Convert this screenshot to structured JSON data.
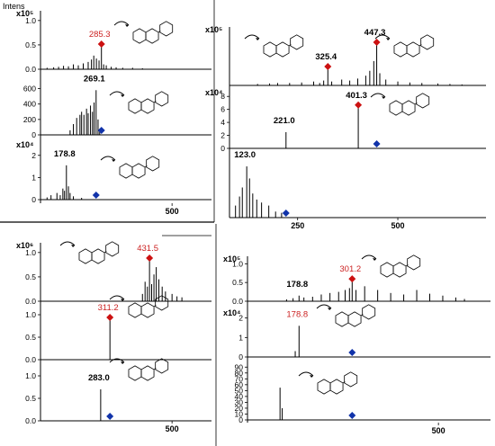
{
  "figure_label": "Intens",
  "colors": {
    "axis": "#000000",
    "peak": "#000000",
    "label_red": "#cc2222",
    "diamond_red": "#cc1111",
    "diamond_blue": "#1133aa"
  },
  "chart_data": [
    {
      "type": "bar",
      "panel": "top-left",
      "plots": [
        {
          "multiplier": "x10⁵",
          "y_ticks": [
            "0.0",
            "0.5",
            "1.0"
          ],
          "ylim": [
            0,
            1.2
          ],
          "peak_label": "285.3",
          "peak_color": "red",
          "peak_x": 285.3,
          "peak_y": 0.48,
          "precursor": {
            "x": 285.3,
            "color": "red"
          },
          "x": [
            120,
            140,
            155,
            170,
            185,
            200,
            215,
            230,
            245,
            255,
            262,
            270,
            278,
            285.3,
            292,
            300,
            315,
            330,
            350,
            380,
            410
          ],
          "y": [
            0.03,
            0.04,
            0.05,
            0.07,
            0.06,
            0.1,
            0.08,
            0.12,
            0.15,
            0.2,
            0.28,
            0.22,
            0.18,
            0.48,
            0.1,
            0.08,
            0.05,
            0.04,
            0.03,
            0.03,
            0.02
          ]
        },
        {
          "multiplier": "",
          "y_ticks": [
            "0",
            "200",
            "400",
            "600"
          ],
          "ylim": [
            0,
            700
          ],
          "peak_label": "269.1",
          "peak_color": "black",
          "peak_x": 269.1,
          "peak_y": 580,
          "precursor": {
            "x": 285.3,
            "color": "blue"
          },
          "x": [
            190,
            200,
            210,
            220,
            225,
            232,
            240,
            245,
            252,
            258,
            263,
            269.1,
            275,
            280
          ],
          "y": [
            60,
            140,
            220,
            260,
            300,
            260,
            340,
            280,
            380,
            300,
            420,
            580,
            200,
            80
          ]
        },
        {
          "multiplier": "x10⁴",
          "y_ticks": [
            "0",
            "1",
            "2"
          ],
          "ylim": [
            0,
            2.6
          ],
          "peak_label": "178.8",
          "peak_color": "black",
          "peak_x": 178.8,
          "peak_y": 1.55,
          "precursor": {
            "x": 269.1,
            "color": "blue"
          },
          "x": [
            120,
            132,
            150,
            160,
            168,
            173,
            178.8,
            185,
            190,
            200,
            225
          ],
          "y": [
            0.1,
            0.2,
            0.3,
            0.2,
            0.5,
            0.4,
            1.55,
            0.6,
            0.3,
            0.15,
            0.08
          ]
        }
      ],
      "x_ticks": [
        "500"
      ]
    },
    {
      "type": "bar",
      "panel": "top-right",
      "plots": [
        {
          "multiplier": "x10⁵",
          "y_ticks": [],
          "ylim": [
            0,
            1.2
          ],
          "peak_labels": [
            {
              "text": "325.4",
              "x": 325.4,
              "y": 0.35
            },
            {
              "text": "447.3",
              "x": 447.3,
              "y": 0.85
            }
          ],
          "precursors": [
            {
              "x": 325.4,
              "color": "red"
            },
            {
              "x": 447.3,
              "color": "red"
            }
          ],
          "x": [
            150,
            180,
            200,
            230,
            260,
            290,
            305,
            315,
            325.4,
            335,
            360,
            380,
            400,
            420,
            430,
            440,
            447.3,
            455,
            470,
            500,
            530,
            560,
            600,
            630,
            660
          ],
          "y": [
            0.03,
            0.04,
            0.05,
            0.05,
            0.06,
            0.08,
            0.05,
            0.1,
            0.35,
            0.08,
            0.12,
            0.1,
            0.14,
            0.2,
            0.3,
            0.5,
            0.85,
            0.25,
            0.12,
            0.08,
            0.06,
            0.05,
            0.04,
            0.03,
            0.02
          ]
        },
        {
          "multiplier": "x10⁴",
          "y_ticks": [
            "0",
            "2",
            "4",
            "6",
            "8"
          ],
          "ylim": [
            0,
            9
          ],
          "peak_labels": [
            {
              "text": "221.0",
              "x": 221.0,
              "y": 2.5
            },
            {
              "text": "401.3",
              "x": 401.3,
              "y": 6.4
            }
          ],
          "precursors": [
            {
              "x": 401.3,
              "color": "red"
            },
            {
              "x": 447.3,
              "color": "blue"
            }
          ],
          "x": [
            221.0,
            401.3
          ],
          "y": [
            2.5,
            6.4
          ]
        },
        {
          "multiplier": "",
          "y_ticks": [],
          "ylim": [
            0,
            1
          ],
          "peak_labels": [
            {
              "text": "123.0",
              "x": 123.0,
              "y": 0.85
            }
          ],
          "precursors": [
            {
              "x": 221.0,
              "color": "blue"
            }
          ],
          "x": [
            95,
            105,
            112,
            123.0,
            130,
            138,
            148,
            160,
            178,
            195,
            210
          ],
          "y": [
            0.2,
            0.35,
            0.5,
            0.85,
            0.65,
            0.4,
            0.3,
            0.25,
            0.2,
            0.1,
            0.08
          ]
        }
      ],
      "x_ticks": [
        "250",
        "500"
      ]
    },
    {
      "type": "bar",
      "panel": "bottom-left",
      "plots": [
        {
          "multiplier": "x10⁶",
          "y_ticks": [
            "0.0",
            "0.5",
            "1.0"
          ],
          "ylim": [
            0,
            1.2
          ],
          "peak_label": "431.5",
          "peak_color": "red",
          "peak_x": 431.5,
          "peak_y": 0.85,
          "precursor": {
            "x": 431.5,
            "color": "red"
          },
          "x": [
            410,
            418,
            425,
            431.5,
            438,
            445,
            452,
            460,
            470,
            480,
            500,
            515,
            530
          ],
          "y": [
            0.15,
            0.4,
            0.3,
            0.85,
            0.35,
            0.55,
            0.7,
            0.45,
            0.3,
            0.2,
            0.15,
            0.1,
            0.08
          ]
        },
        {
          "multiplier": "",
          "y_ticks": [
            "0.0",
            "0.5",
            "1.0"
          ],
          "ylim": [
            0,
            1.2
          ],
          "peak_label": "311.2",
          "peak_color": "red",
          "peak_x": 311.2,
          "peak_y": 0.9,
          "precursor": {
            "x": 311.2,
            "color": "red"
          },
          "x": [
            311.2
          ],
          "y": [
            0.9
          ]
        },
        {
          "multiplier": "",
          "y_ticks": [
            "0.0",
            "0.5",
            "1.0"
          ],
          "ylim": [
            0,
            1.2
          ],
          "peak_label": "283.0",
          "peak_color": "black",
          "peak_x": 283.0,
          "peak_y": 0.7,
          "precursor": {
            "x": 311.2,
            "color": "blue"
          },
          "x": [
            283.0
          ],
          "y": [
            0.7
          ]
        }
      ],
      "x_ticks": [
        "500"
      ]
    },
    {
      "type": "bar",
      "panel": "bottom-right",
      "plots": [
        {
          "multiplier": "x10⁵",
          "y_ticks": [
            "0.0",
            "0.5",
            "1.0"
          ],
          "ylim": [
            0,
            1.2
          ],
          "peak_labels": [
            {
              "text": "178.8",
              "x": 178.8,
              "y": 0.15,
              "color": "black"
            },
            {
              "text": "301.2",
              "x": 301.2,
              "y": 0.55,
              "color": "red"
            }
          ],
          "precursors": [
            {
              "x": 301.2,
              "color": "red"
            }
          ],
          "x": [
            150,
            165,
            178.8,
            190,
            210,
            230,
            250,
            270,
            285,
            295,
            301.2,
            310,
            330,
            360,
            390,
            420,
            450,
            480,
            510,
            540,
            560
          ],
          "y": [
            0.05,
            0.08,
            0.15,
            0.1,
            0.12,
            0.18,
            0.22,
            0.25,
            0.3,
            0.35,
            0.55,
            0.3,
            0.4,
            0.3,
            0.22,
            0.18,
            0.3,
            0.2,
            0.15,
            0.1,
            0.06
          ]
        },
        {
          "multiplier": "x10⁴",
          "y_ticks": [
            "0",
            "1",
            "2"
          ],
          "ylim": [
            0,
            2.4
          ],
          "peak_labels": [
            {
              "text": "178.8",
              "x": 178.8,
              "y": 1.6,
              "color": "red"
            }
          ],
          "precursors": [
            {
              "x": 301.2,
              "color": "blue"
            }
          ],
          "x": [
            170,
            178.8
          ],
          "y": [
            0.3,
            1.6
          ]
        },
        {
          "multiplier": "",
          "y_ticks": [
            "0",
            "10",
            "20",
            "30",
            "40",
            "50",
            "60",
            "70",
            "80",
            "90"
          ],
          "ylim": [
            0,
            95
          ],
          "peak_labels": [],
          "precursors": [
            {
              "x": 301.2,
              "color": "blue"
            }
          ],
          "x": [
            135,
            140
          ],
          "y": [
            55,
            20
          ]
        }
      ],
      "x_ticks": [
        "500"
      ]
    }
  ]
}
